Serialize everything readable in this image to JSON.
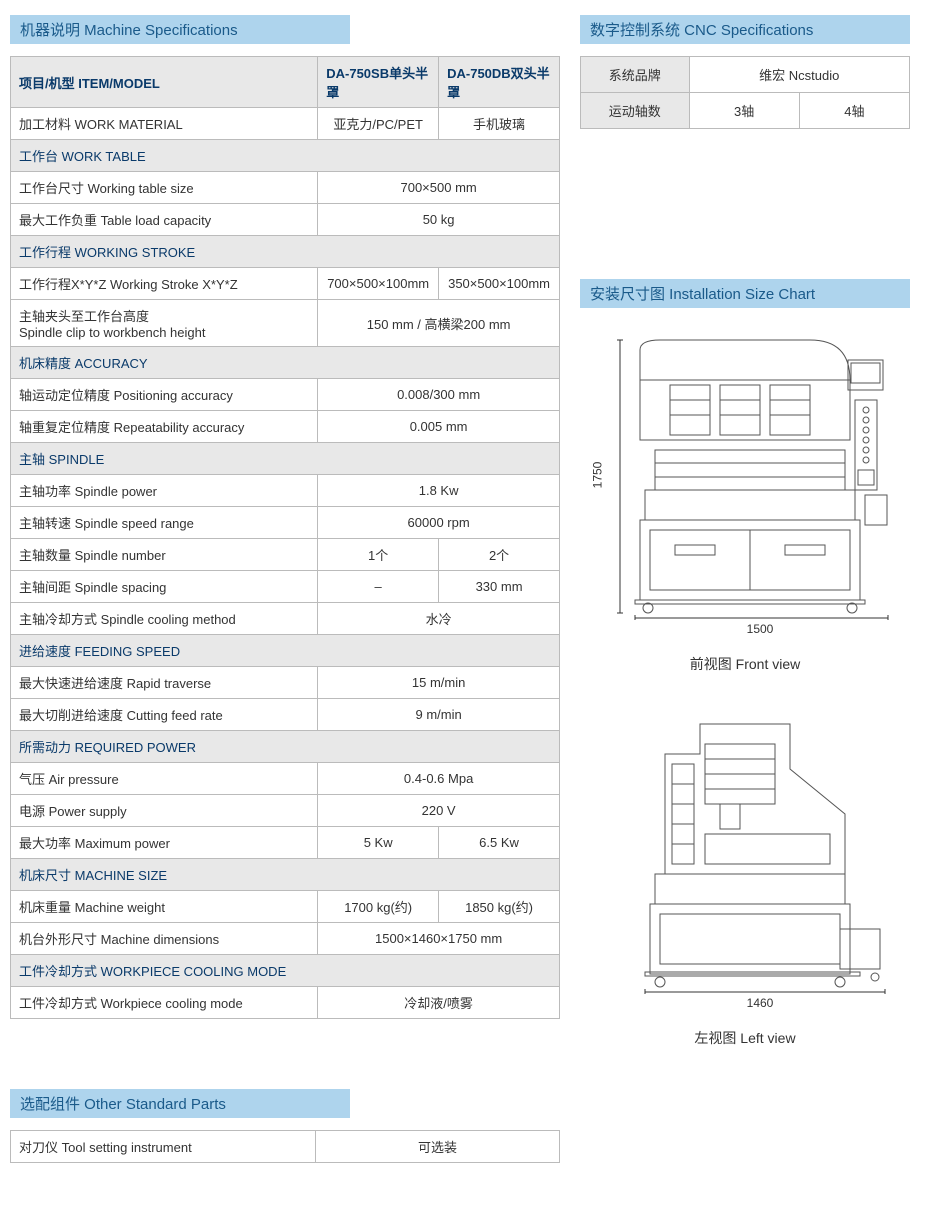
{
  "headers": {
    "machine_spec": "机器说明  Machine Specifications",
    "cnc_spec": "数字控制系统 CNC Specifications",
    "install_chart": "安装尺寸图  Installation Size Chart",
    "other_parts": "选配组件  Other Standard Parts"
  },
  "spec_table": {
    "header": {
      "item": "项目/机型 ITEM/MODEL",
      "col1": "DA-750SB单头半罩",
      "col2": "DA-750DB双头半罩"
    },
    "rows": [
      {
        "type": "data",
        "label": "加工材料 WORK MATERIAL",
        "c1": "亚克力/PC/PET",
        "c2": "手机玻璃"
      },
      {
        "type": "section",
        "label": "工作台 WORK TABLE"
      },
      {
        "type": "data",
        "label": "工作台尺寸 Working table size",
        "span": "700×500 mm"
      },
      {
        "type": "data",
        "label": "最大工作负重 Table load capacity",
        "span": "50 kg"
      },
      {
        "type": "section",
        "label": "工作行程 WORKING STROKE"
      },
      {
        "type": "data",
        "label": "工作行程X*Y*Z   Working Stroke X*Y*Z",
        "c1": "700×500×100mm",
        "c2": "350×500×100mm"
      },
      {
        "type": "data",
        "label": "主轴夹头至工作台高度\nSpindle clip to workbench height",
        "span": "150 mm / 高横梁200 mm"
      },
      {
        "type": "section",
        "label": "机床精度 ACCURACY"
      },
      {
        "type": "data",
        "label": "轴运动定位精度 Positioning accuracy",
        "span": "0.008/300 mm"
      },
      {
        "type": "data",
        "label": "轴重复定位精度 Repeatability accuracy",
        "span": "0.005 mm"
      },
      {
        "type": "section",
        "label": "主轴 SPINDLE"
      },
      {
        "type": "data",
        "label": "主轴功率 Spindle power",
        "span": "1.8 Kw"
      },
      {
        "type": "data",
        "label": "主轴转速 Spindle speed range",
        "span": "60000 rpm"
      },
      {
        "type": "data",
        "label": "主轴数量 Spindle number",
        "c1": "1个",
        "c2": "2个"
      },
      {
        "type": "data",
        "label": "主轴间距 Spindle spacing",
        "c1": "–",
        "c2": "330 mm"
      },
      {
        "type": "data",
        "label": "主轴冷却方式 Spindle cooling method",
        "span": "水冷"
      },
      {
        "type": "section",
        "label": "进给速度 FEEDING SPEED"
      },
      {
        "type": "data",
        "label": "最大快速进给速度 Rapid traverse",
        "span": "15 m/min"
      },
      {
        "type": "data",
        "label": "最大切削进给速度 Cutting feed rate",
        "span": "9 m/min"
      },
      {
        "type": "section",
        "label": "所需动力 REQUIRED POWER"
      },
      {
        "type": "data",
        "label": "气压 Air pressure",
        "span": "0.4-0.6 Mpa"
      },
      {
        "type": "data",
        "label": "电源 Power supply",
        "span": "220 V"
      },
      {
        "type": "data",
        "label": "最大功率 Maximum power",
        "c1": "5 Kw",
        "c2": "6.5 Kw"
      },
      {
        "type": "section",
        "label": "机床尺寸 MACHINE SIZE"
      },
      {
        "type": "data",
        "label": "机床重量 Machine weight",
        "c1": "1700 kg(约)",
        "c2": "1850 kg(约)"
      },
      {
        "type": "data",
        "label": "机台外形尺寸 Machine dimensions",
        "span": "1500×1460×1750 mm"
      },
      {
        "type": "section",
        "label": "工件冷却方式 WORKPIECE COOLING MODE"
      },
      {
        "type": "data",
        "label": "工件冷却方式 Workpiece cooling mode",
        "span": "冷却液/喷雾"
      }
    ]
  },
  "other_parts_table": {
    "label": "对刀仪 Tool setting instrument",
    "value": "可选装"
  },
  "cnc_table": {
    "r1c1": "系统品牌",
    "r1c2": "维宏 Ncstudio",
    "r2c1": "运动轴数",
    "r2c2": "3轴",
    "r2c3": "4轴"
  },
  "diagrams": {
    "front": {
      "height_dim": "1750",
      "width_dim": "1500",
      "caption": "前视图 Front view"
    },
    "left": {
      "width_dim": "1460",
      "caption": "左视图 Left view"
    }
  },
  "styles": {
    "header_bg": "#aed4ed",
    "header_text": "#1a5a8a",
    "section_bg": "#e8e8e8",
    "border_color": "#bbbbbb",
    "body_text": "#333333"
  }
}
